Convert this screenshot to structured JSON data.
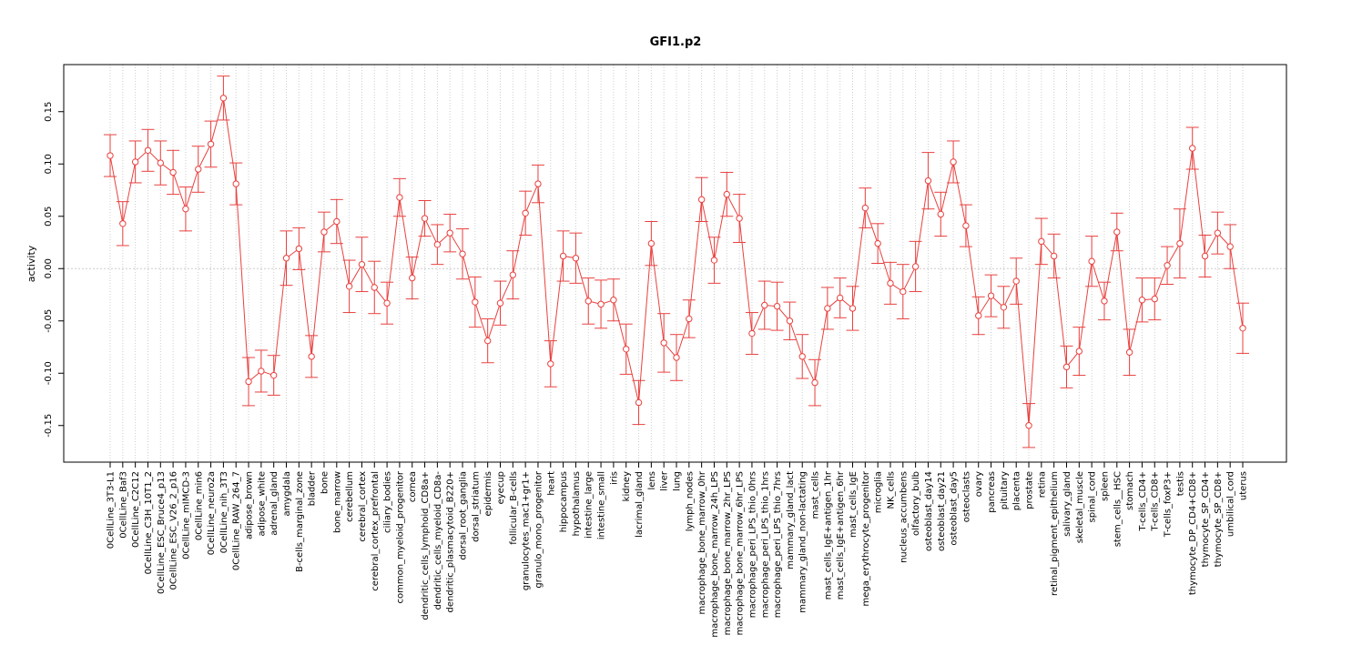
{
  "chart_data": {
    "type": "line",
    "title": "GFI1.p2",
    "xlabel": "",
    "ylabel": "activity",
    "ylim": [
      -0.185,
      0.195
    ],
    "yticks": [
      -0.15,
      -0.1,
      -0.05,
      0.0,
      0.05,
      0.1,
      0.15
    ],
    "ytick_labels": [
      "-0.15",
      "-0.10",
      "-0.05",
      "0.00",
      "0.05",
      "0.10",
      "0.15"
    ],
    "grid": true,
    "reference_line": 0,
    "colors": {
      "series": "#e8413f",
      "grid": "#cccccc",
      "axis": "#000000"
    },
    "categories": [
      "0CellLine_3T3-L1",
      "0CellLine_Baf3",
      "0CellLine_C2C12",
      "0CellLine_C3H_10T1_2",
      "0CellLine_ESC_Bruce4_p13",
      "0CellLine_ESC_V26_2_p16",
      "0CellLine_mIMCD-3",
      "0CellLine_min6",
      "0CellLine_neuro2a",
      "0CellLine_nih_3T3",
      "0CellLine_RAW_264_7",
      "adipose_brown",
      "adipose_white",
      "adrenal_gland",
      "amygdala",
      "B-cells_marginal_zone",
      "bladder",
      "bone",
      "bone_marrow",
      "cerebellum",
      "cerebral_cortex",
      "cerebral_cortex_prefrontal",
      "ciliary_bodies",
      "common_myeloid_progenitor",
      "cornea",
      "dendritic_cells_lymphoid_CD8a+",
      "dendritic_cells_myeloid_CD8a-",
      "dendritic_plasmacytoid_B220+",
      "dorsal_root_ganglia",
      "dorsal_striatum",
      "epidermis",
      "eyecup",
      "follicular_B-cells",
      "granulocytes_mac1+gr1+",
      "granulo_mono_progenitor",
      "heart",
      "hippocampus",
      "hypothalamus",
      "intestine_large",
      "intestine_small",
      "iris",
      "kidney",
      "lacrimal_gland",
      "lens",
      "liver",
      "lung",
      "lymph_nodes",
      "macrophage_bone_marrow_0hr",
      "macrophage_bone_marrow_24h_LPS",
      "macrophage_bone_marrow_2hr_LPS",
      "macrophage_bone_marrow_6hr_LPS",
      "macrophage_peri_LPS_thio_0hrs",
      "macrophage_peri_LPS_thio_1hrs",
      "macrophage_peri_LPS_thio_7hrs",
      "mammary_gland_lact",
      "mammary_gland_non-lactating",
      "mast_cells",
      "mast_cells_IgE+antigen_1hr",
      "mast_cells_IgE+antigen_6hr",
      "mast_cells_IgE",
      "mega_erythrocyte_progenitor",
      "microglia",
      "NK_cells",
      "nucleus_accumbens",
      "olfactory_bulb",
      "osteoblast_day14",
      "osteoblast_day21",
      "osteoblast_day5",
      "osteoclasts",
      "ovary",
      "pancreas",
      "pituitary",
      "placenta",
      "prostate",
      "retina",
      "retinal_pigment_epithelium",
      "salivary_gland",
      "skeletal_muscle",
      "spinal_cord",
      "spleen",
      "stem_cells__HSC",
      "stomach",
      "T-cells_CD4+",
      "T-cells_CD8+",
      "T-cells_foxP3+",
      "testis",
      "thymocyte_DP_CD4+CD8+",
      "thymocyte_SP_CD4+",
      "thymocyte_SP_CD8+",
      "umbilical_cord",
      "uterus"
    ],
    "series": [
      {
        "values": [
          0.108,
          0.043,
          0.102,
          0.113,
          0.101,
          0.092,
          0.057,
          0.095,
          0.119,
          0.163,
          0.081,
          -0.108,
          -0.098,
          -0.102,
          0.01,
          0.019,
          -0.084,
          0.035,
          0.045,
          -0.017,
          0.004,
          -0.018,
          -0.033,
          0.068,
          -0.009,
          0.048,
          0.023,
          0.034,
          0.014,
          -0.032,
          -0.069,
          -0.033,
          -0.006,
          0.053,
          0.081,
          -0.091,
          0.012,
          0.01,
          -0.031,
          -0.034,
          -0.03,
          -0.077,
          -0.128,
          0.024,
          -0.071,
          -0.085,
          -0.048,
          0.066,
          0.008,
          0.071,
          0.048,
          -0.062,
          -0.035,
          -0.036,
          -0.05,
          -0.084,
          -0.109,
          -0.038,
          -0.028,
          -0.038,
          0.058,
          0.024,
          -0.014,
          -0.022,
          0.002,
          0.084,
          0.052,
          0.102,
          0.041,
          -0.045,
          -0.026,
          -0.037,
          -0.012,
          -0.15,
          0.026,
          0.012,
          -0.094,
          -0.079,
          0.007,
          -0.031,
          0.035,
          -0.08,
          -0.03,
          -0.029,
          0.003,
          0.024,
          0.115,
          0.012,
          0.034,
          0.021,
          -0.057
        ],
        "errors": [
          0.02,
          0.021,
          0.02,
          0.02,
          0.021,
          0.021,
          0.021,
          0.022,
          0.022,
          0.021,
          0.02,
          0.023,
          0.02,
          0.019,
          0.026,
          0.02,
          0.02,
          0.019,
          0.021,
          0.025,
          0.026,
          0.025,
          0.02,
          0.018,
          0.02,
          0.017,
          0.019,
          0.018,
          0.024,
          0.024,
          0.021,
          0.021,
          0.023,
          0.021,
          0.018,
          0.022,
          0.024,
          0.024,
          0.022,
          0.023,
          0.02,
          0.024,
          0.021,
          0.021,
          0.028,
          0.022,
          0.018,
          0.021,
          0.022,
          0.021,
          0.023,
          0.02,
          0.023,
          0.023,
          0.018,
          0.021,
          0.022,
          0.02,
          0.019,
          0.021,
          0.019,
          0.019,
          0.02,
          0.026,
          0.024,
          0.027,
          0.021,
          0.02,
          0.02,
          0.018,
          0.02,
          0.02,
          0.022,
          0.021,
          0.022,
          0.021,
          0.02,
          0.023,
          0.024,
          0.018,
          0.018,
          0.022,
          0.021,
          0.02,
          0.018,
          0.033,
          0.02,
          0.02,
          0.02,
          0.021,
          0.024
        ]
      }
    ]
  }
}
